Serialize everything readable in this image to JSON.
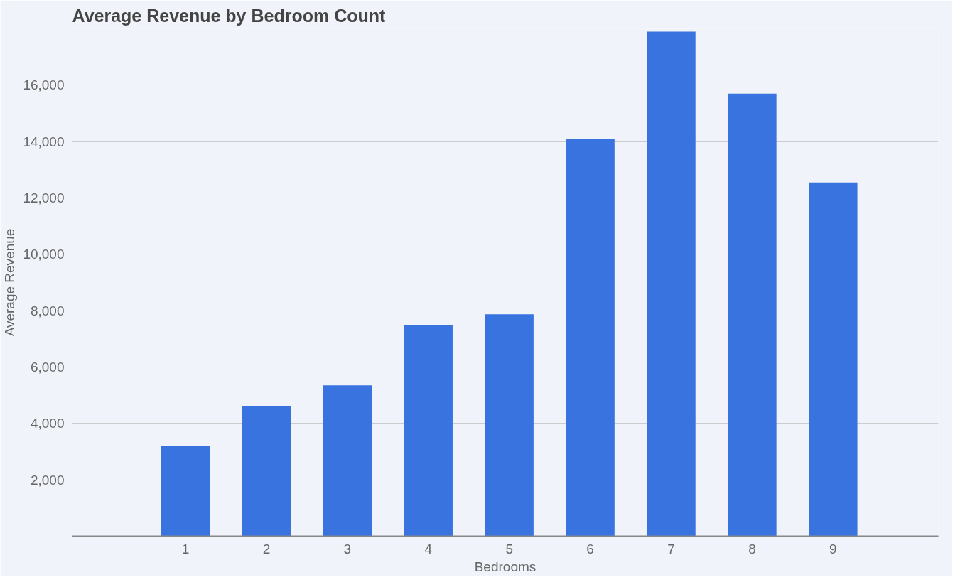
{
  "chart_data": {
    "type": "bar",
    "title": "Average Revenue by Bedroom Count",
    "xlabel": "Bedrooms",
    "ylabel": "Average Revenue",
    "x": [
      1,
      2,
      3,
      4,
      5,
      6,
      7,
      8,
      9
    ],
    "series": [
      {
        "color": "#3873e0",
        "values": [
          3200,
          4600,
          5350,
          7500,
          7870,
          14100,
          17900,
          15700,
          12550
        ]
      }
    ],
    "xlim": [
      -0.4,
      10.3
    ],
    "xticks": [
      1,
      2,
      3,
      4,
      5,
      6,
      7,
      8,
      9
    ],
    "ylim": [
      0,
      18000
    ],
    "yticks": [
      {
        "value": 0,
        "label": null
      },
      {
        "value": 2000,
        "label": "2,000"
      },
      {
        "value": 4000,
        "label": "4,000"
      },
      {
        "value": 6000,
        "label": "6,000"
      },
      {
        "value": 8000,
        "label": "8,000"
      },
      {
        "value": 10000,
        "label": "10,000"
      },
      {
        "value": 12000,
        "label": "12,000"
      },
      {
        "value": 14000,
        "label": "14,000"
      },
      {
        "value": 16000,
        "label": "16,000"
      },
      {
        "value": 18000,
        "label": null
      }
    ],
    "grid": "y"
  }
}
